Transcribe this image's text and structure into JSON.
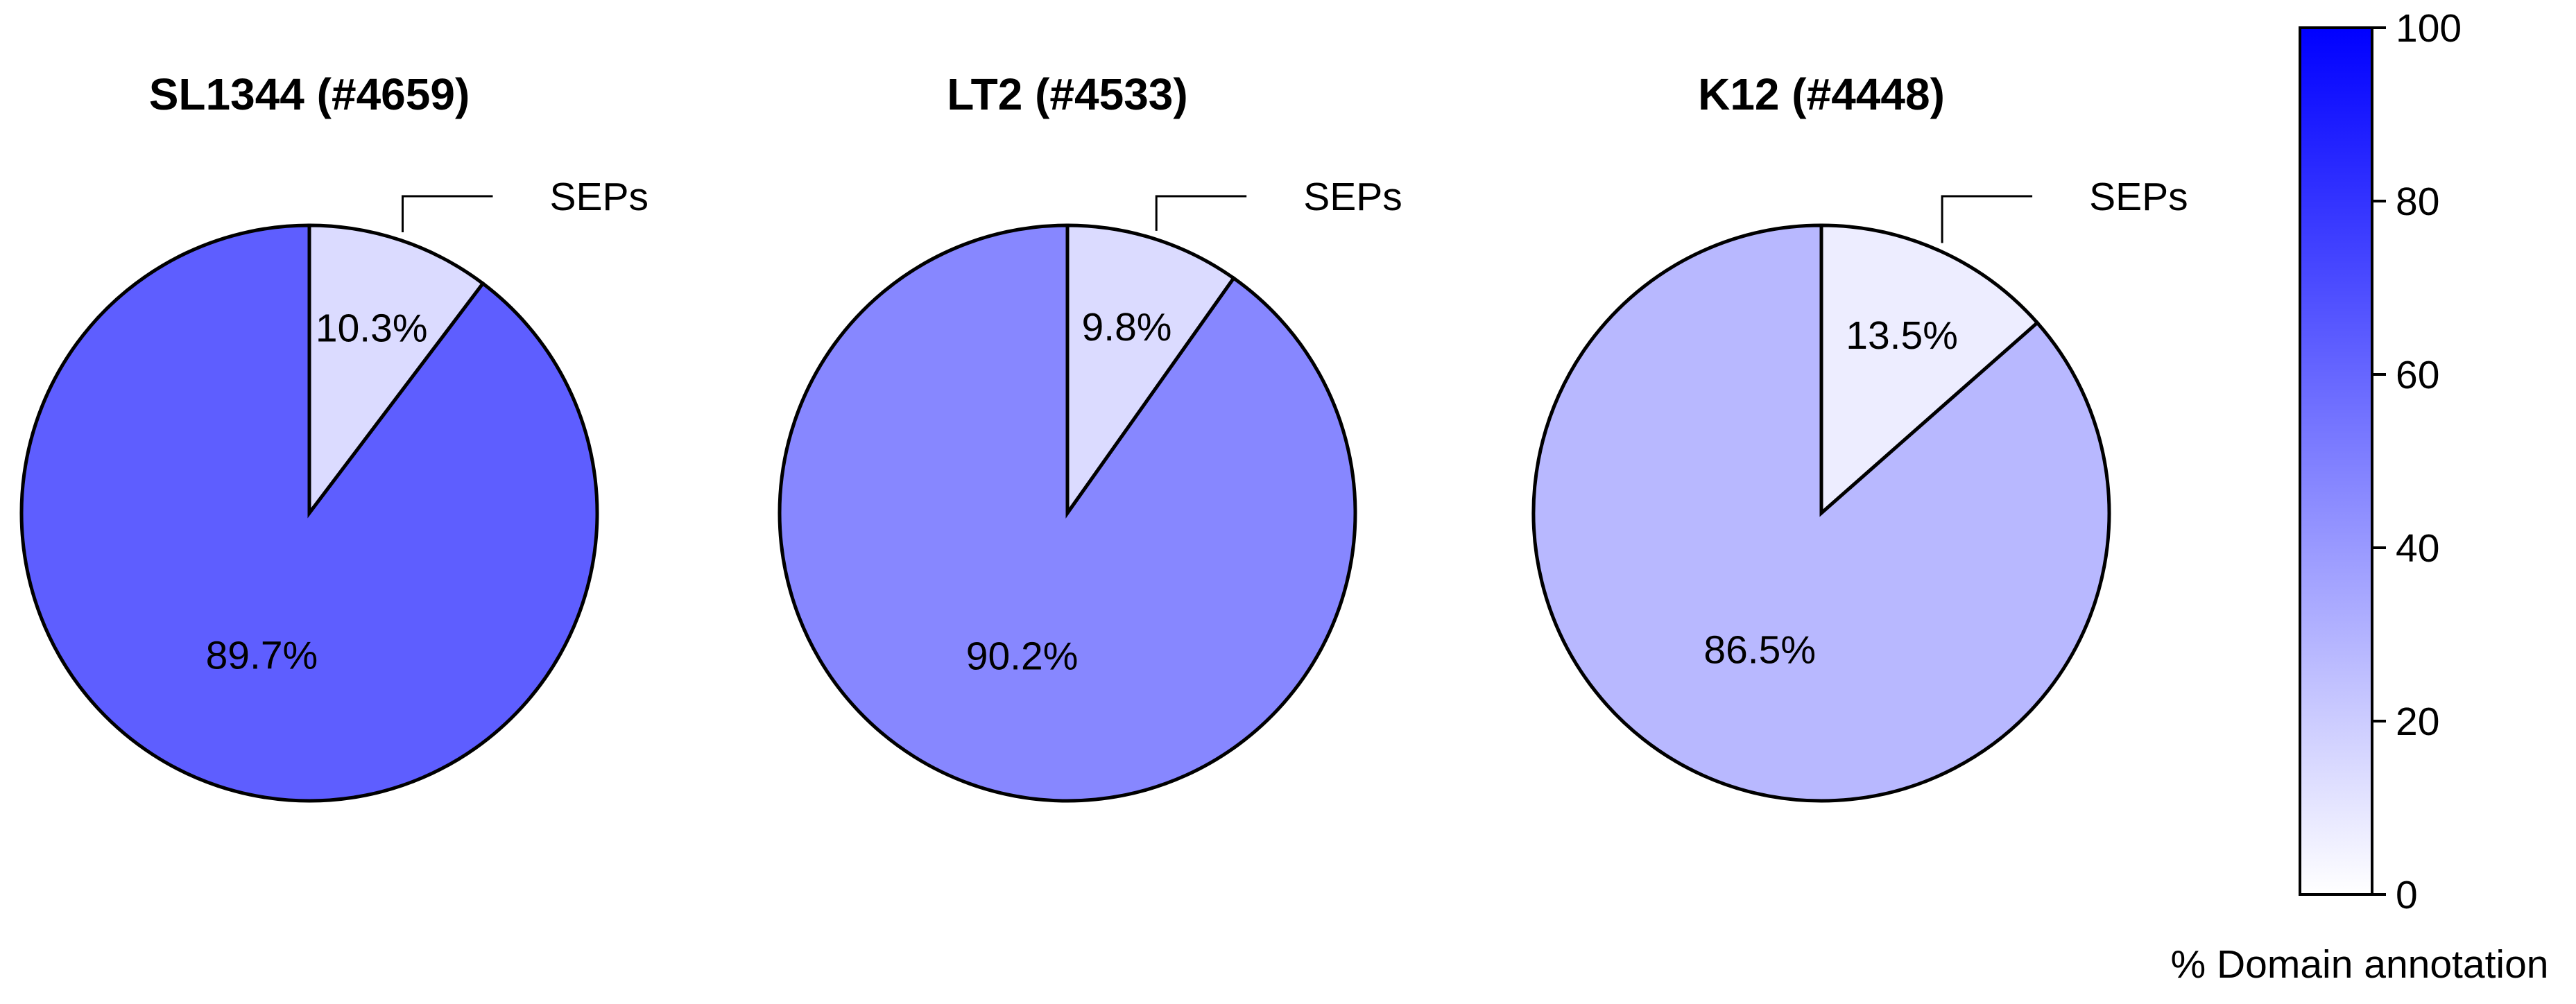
{
  "chart_data": [
    {
      "type": "pie",
      "title": "SL1344 (#4659)",
      "slices": [
        {
          "label": "SEPs",
          "value": 10.3,
          "value_label": "10.3%",
          "domain_annotation": 14
        },
        {
          "value": 89.7,
          "value_label": "89.7%",
          "domain_annotation": 63
        }
      ]
    },
    {
      "type": "pie",
      "title": "LT2 (#4533)",
      "slices": [
        {
          "label": "SEPs",
          "value": 9.8,
          "value_label": "9.8%",
          "domain_annotation": 14
        },
        {
          "value": 90.2,
          "value_label": "90.2%",
          "domain_annotation": 47
        }
      ]
    },
    {
      "type": "pie",
      "title": "K12 (#4448)",
      "slices": [
        {
          "label": "SEPs",
          "value": 13.5,
          "value_label": "13.5%",
          "domain_annotation": 7
        },
        {
          "value": 86.5,
          "value_label": "86.5%",
          "domain_annotation": 28
        }
      ]
    }
  ],
  "colorbar": {
    "title": "% Domain annotation",
    "range": [
      0,
      100
    ],
    "ticks": [
      "0",
      "20",
      "40",
      "60",
      "80",
      "100"
    ],
    "color_low": "#ffffff",
    "color_high": "#0000ff"
  }
}
